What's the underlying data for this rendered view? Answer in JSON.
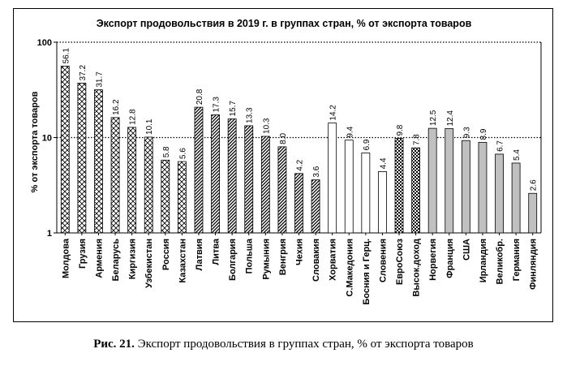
{
  "caption": {
    "label": "Рис. 21.",
    "text": "Экспорт продовольствия в группах стран, % от экспорта товаров"
  },
  "chart_data": {
    "type": "bar",
    "title": "Экспорт продовольствия в 2019 г. в группах стран, % от экспорта товаров",
    "ylabel": "% от экспорта товаров",
    "xlabel": "",
    "yscale": "log",
    "ylim": [
      1,
      100
    ],
    "yticks": [
      "1",
      "10",
      "100"
    ],
    "gridlines": "dotted at 10 and 100",
    "legend": "none",
    "categories": [
      "Молдова",
      "Грузия",
      "Армения",
      "Беларусь",
      "Киргизия",
      "Узбекистан",
      "Россия",
      "Казахстан",
      "Латвия",
      "Литва",
      "Болгария",
      "Польша",
      "Румыния",
      "Венгрия",
      "Чехия",
      "Словакия",
      "Хорватия",
      "С.Македония",
      "Босния и Герц.",
      "Словения",
      "ЕвроСоюз",
      "Высок.доход",
      "Норвегия",
      "Франция",
      "США",
      "Ирландия",
      "Великобр.",
      "Германия",
      "Финляндия"
    ],
    "values": [
      56.1,
      37.2,
      31.7,
      16.2,
      12.8,
      10.1,
      5.8,
      5.6,
      20.8,
      17.3,
      15.7,
      13.3,
      10.3,
      8.0,
      4.2,
      3.6,
      14.2,
      9.4,
      6.9,
      4.4,
      9.8,
      7.8,
      12.5,
      12.4,
      9.3,
      8.9,
      6.7,
      5.4,
      2.6
    ],
    "value_labels": [
      "56.1",
      "37.2",
      "31.7",
      "16.2",
      "12.8",
      "10.1",
      "5.8",
      "5.6",
      "20.8",
      "17.3",
      "15.7",
      "13.3",
      "10.3",
      "8.0",
      "4.2",
      "3.6",
      "14.2",
      "9.4",
      "6.9",
      "4.4",
      "9.8",
      "7.8",
      "12.5",
      "12.4",
      "9.3",
      "8.9",
      "6.7",
      "5.4",
      "2.6"
    ],
    "groups": [
      "cis",
      "cis",
      "cis",
      "cis",
      "cis",
      "cis",
      "cis",
      "cis",
      "eu-east",
      "eu-east",
      "eu-east",
      "eu-east",
      "eu-east",
      "eu-east",
      "eu-east",
      "eu-east",
      "balkans",
      "balkans",
      "balkans",
      "balkans",
      "aggregate",
      "aggregate",
      "developed",
      "developed",
      "developed",
      "developed",
      "developed",
      "developed",
      "developed"
    ],
    "group_fills": {
      "cis": "crosshatch",
      "eu-east": "diagonal-dark",
      "balkans": "white",
      "aggregate": "checker",
      "developed": "gray"
    },
    "colors": {
      "bar_outline": "#000000",
      "developed_fill": "#c0c0c0",
      "grid": "#000000"
    }
  }
}
